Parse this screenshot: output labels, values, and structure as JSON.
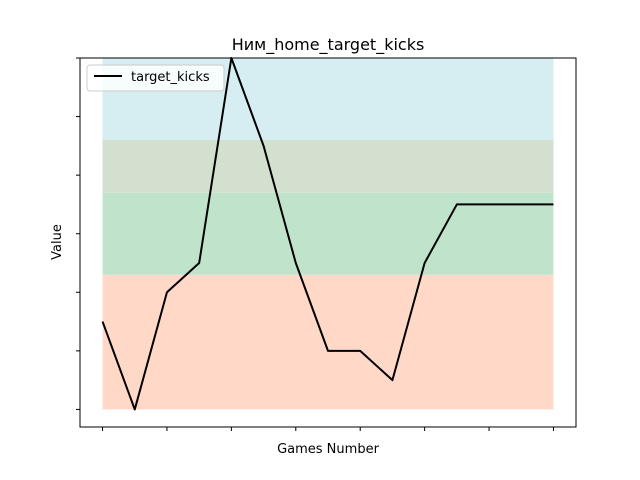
{
  "chart_data": {
    "type": "line",
    "title": "Ним_home_target_kicks",
    "xlabel": "Games Number",
    "ylabel": "Value",
    "x": [
      0,
      1,
      2,
      3,
      4,
      5,
      6,
      7,
      8,
      9,
      10,
      11,
      12,
      13,
      14
    ],
    "xlim": [
      -0.7,
      14.7
    ],
    "x_tick_positions": [
      0,
      2,
      4,
      6,
      8,
      10,
      12,
      14
    ],
    "x_tick_labels": [
      "",
      "",
      "",
      "",
      "",
      "",
      "",
      ""
    ],
    "ylim": [
      -0.3,
      6.0
    ],
    "y_tick_positions": [
      0,
      1,
      2,
      3,
      4,
      5,
      6
    ],
    "y_tick_labels": [
      "",
      "",
      "",
      "",
      "",
      "",
      ""
    ],
    "series": [
      {
        "name": "target_kicks",
        "color": "#000000",
        "values": [
          1.5,
          0,
          2,
          2.5,
          6,
          4.5,
          2.5,
          1,
          1,
          0.5,
          2.5,
          3.5,
          3.5,
          3.5,
          3.5
        ]
      }
    ],
    "bands": [
      {
        "from": 0,
        "to": 2.3,
        "color": "#ffd8c8"
      },
      {
        "from": 2.3,
        "to": 3.7,
        "color": "#c0e4cb"
      },
      {
        "from": 3.7,
        "to": 4.6,
        "color": "#d3dfcf"
      },
      {
        "from": 4.6,
        "to": 6.0,
        "color": "#d6edf2"
      }
    ],
    "legend": {
      "position": "top-left"
    },
    "grid": false
  }
}
